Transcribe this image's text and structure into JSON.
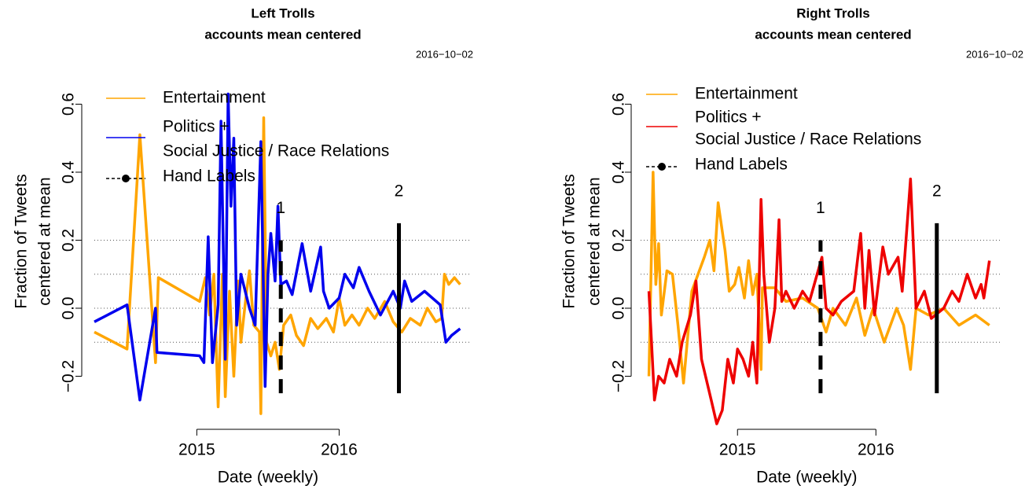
{
  "chart_data": [
    {
      "type": "line",
      "title": [
        "Left Trolls",
        "accounts mean centered"
      ],
      "annotation": "2016−10−02",
      "xlabel": "Date (weekly)",
      "ylabel": [
        "Fraction of Tweets",
        "centered at mean"
      ],
      "xlim": [
        2014.28,
        2016.87
      ],
      "ylim": [
        -0.33,
        0.65
      ],
      "xticks": [
        2015,
        2016
      ],
      "yticks": [
        {
          "value": -0.2,
          "label": "−0.2"
        },
        {
          "value": 0,
          "label": "0.0"
        },
        0.2,
        0.4,
        0.6
      ],
      "hlines": [
        0.2,
        0.1,
        0,
        -0.1
      ],
      "series": [
        {
          "name": [
            "Entertainment"
          ],
          "color": "#ffa500",
          "x": [
            2014.28,
            2014.51,
            2014.6,
            2014.71,
            2014.73,
            2015.02,
            2015.06,
            2015.09,
            2015.12,
            2015.15,
            2015.18,
            2015.2,
            2015.23,
            2015.26,
            2015.29,
            2015.31,
            2015.35,
            2015.37,
            2015.4,
            2015.44,
            2015.45,
            2015.47,
            2015.49,
            2015.52,
            2015.55,
            2015.58,
            2015.61,
            2015.66,
            2015.7,
            2015.75,
            2015.8,
            2015.85,
            2015.91,
            2015.96,
            2016.0,
            2016.04,
            2016.09,
            2016.14,
            2016.2,
            2016.25,
            2016.32,
            2016.38,
            2016.44,
            2016.5,
            2016.57,
            2016.62,
            2016.68,
            2016.72,
            2016.74,
            2016.77,
            2016.81,
            2016.85
          ],
          "values": [
            -0.07,
            -0.12,
            0.51,
            -0.16,
            0.09,
            0.02,
            0.09,
            -0.02,
            0.1,
            -0.29,
            0.1,
            -0.26,
            0.05,
            -0.2,
            0.08,
            -0.1,
            0.05,
            0.11,
            -0.05,
            -0.07,
            -0.31,
            0.56,
            -0.1,
            -0.14,
            -0.1,
            -0.18,
            -0.05,
            -0.02,
            -0.08,
            -0.11,
            -0.03,
            -0.06,
            -0.03,
            -0.07,
            0.03,
            -0.05,
            -0.02,
            -0.05,
            0.0,
            -0.03,
            0.02,
            -0.04,
            -0.07,
            -0.03,
            -0.05,
            0.0,
            -0.04,
            -0.03,
            0.1,
            0.07,
            0.09,
            0.07
          ]
        },
        {
          "name": [
            "Politics +",
            "Social Justice / Race Relations"
          ],
          "color": "#0000ee",
          "x": [
            2014.28,
            2014.51,
            2014.6,
            2014.71,
            2014.72,
            2015.02,
            2015.05,
            2015.08,
            2015.11,
            2015.15,
            2015.17,
            2015.2,
            2015.22,
            2015.24,
            2015.26,
            2015.28,
            2015.31,
            2015.37,
            2015.41,
            2015.45,
            2015.48,
            2015.5,
            2015.52,
            2015.55,
            2015.57,
            2015.59,
            2015.63,
            2015.67,
            2015.74,
            2015.8,
            2015.87,
            2015.89,
            2015.93,
            2016.0,
            2016.04,
            2016.1,
            2016.14,
            2016.21,
            2016.29,
            2016.38,
            2016.43,
            2016.46,
            2016.51,
            2016.6,
            2016.71,
            2016.75,
            2016.79,
            2016.85
          ],
          "values": [
            -0.04,
            0.01,
            -0.27,
            0.0,
            -0.13,
            -0.14,
            -0.16,
            0.21,
            -0.16,
            0.01,
            0.55,
            -0.15,
            0.63,
            0.3,
            0.5,
            -0.05,
            0.1,
            0.0,
            -0.05,
            0.49,
            -0.23,
            0.1,
            0.22,
            0.08,
            0.3,
            0.07,
            0.08,
            0.04,
            0.19,
            0.05,
            0.18,
            0.05,
            0.0,
            0.03,
            0.1,
            0.06,
            0.12,
            0.05,
            -0.02,
            0.05,
            0.0,
            0.08,
            0.02,
            0.05,
            0.01,
            -0.1,
            -0.08,
            -0.06
          ]
        }
      ],
      "hand_labels": {
        "name": "Hand Labels",
        "color": "#000000",
        "lines": [
          {
            "label": "1",
            "x": 2015.59,
            "y": [
              -0.25,
              0.2
            ],
            "style": "dashed"
          },
          {
            "label": "2",
            "x": 2016.42,
            "y": [
              -0.25,
              0.25
            ],
            "style": "solid"
          }
        ]
      }
    },
    {
      "type": "line",
      "title": [
        "Right Trolls",
        "accounts mean centered"
      ],
      "annotation": "2016−10−02",
      "xlabel": "Date (weekly)",
      "ylabel": [
        "Fraction of Tweets",
        "centered at mean"
      ],
      "xlim": [
        2014.3,
        2016.85
      ],
      "ylim": [
        -0.35,
        0.65
      ],
      "xticks": [
        2015,
        2016
      ],
      "yticks": [
        {
          "value": -0.2,
          "label": "−0.2"
        },
        {
          "value": 0,
          "label": "0.0"
        },
        0.2,
        0.4,
        0.6
      ],
      "hlines": [
        0.2,
        0.1,
        0,
        -0.1
      ],
      "series": [
        {
          "name": [
            "Entertainment"
          ],
          "color": "#ffa500",
          "x": [
            2014.36,
            2014.39,
            2014.41,
            2014.43,
            2014.45,
            2014.49,
            2014.53,
            2014.57,
            2014.61,
            2014.67,
            2014.76,
            2014.8,
            2014.83,
            2014.86,
            2014.91,
            2014.94,
            2014.98,
            2015.01,
            2015.05,
            2015.08,
            2015.11,
            2015.14,
            2015.17,
            2015.18,
            2015.27,
            2015.35,
            2015.47,
            2015.58,
            2015.64,
            2015.69,
            2015.78,
            2015.86,
            2015.92,
            2015.98,
            2016.06,
            2016.15,
            2016.2,
            2016.25,
            2016.29,
            2016.38,
            2016.49,
            2016.6,
            2016.72,
            2016.82
          ],
          "values": [
            -0.2,
            0.4,
            0.07,
            0.19,
            -0.02,
            0.11,
            0.1,
            -0.05,
            -0.22,
            0.05,
            0.15,
            0.2,
            0.11,
            0.31,
            0.17,
            0.05,
            0.07,
            0.12,
            0.03,
            0.14,
            0.04,
            0.1,
            -0.18,
            0.06,
            0.06,
            0.02,
            0.03,
            0.0,
            -0.07,
            0.0,
            -0.05,
            0.03,
            -0.08,
            0.0,
            -0.1,
            0.0,
            -0.05,
            -0.18,
            0.0,
            -0.02,
            0.0,
            -0.05,
            -0.02,
            -0.05
          ]
        },
        {
          "name": [
            "Politics +",
            "Social Justice / Race Relations"
          ],
          "color": "#ee0000",
          "x": [
            2014.36,
            2014.4,
            2014.43,
            2014.47,
            2014.51,
            2014.56,
            2014.6,
            2014.66,
            2014.7,
            2014.74,
            2014.81,
            2014.85,
            2014.89,
            2014.93,
            2014.97,
            2015.0,
            2015.04,
            2015.08,
            2015.11,
            2015.14,
            2015.17,
            2015.19,
            2015.23,
            2015.27,
            2015.3,
            2015.32,
            2015.35,
            2015.41,
            2015.47,
            2015.52,
            2015.61,
            2015.64,
            2015.69,
            2015.75,
            2015.84,
            2015.89,
            2015.92,
            2015.95,
            2015.99,
            2016.05,
            2016.09,
            2016.16,
            2016.19,
            2016.25,
            2016.29,
            2016.35,
            2016.4,
            2016.49,
            2016.55,
            2016.6,
            2016.66,
            2016.72,
            2016.76,
            2016.78,
            2016.82
          ],
          "values": [
            0.05,
            -0.27,
            -0.2,
            -0.22,
            -0.15,
            -0.2,
            -0.1,
            -0.02,
            0.08,
            -0.15,
            -0.27,
            -0.34,
            -0.3,
            -0.15,
            -0.22,
            -0.12,
            -0.15,
            -0.2,
            -0.1,
            -0.22,
            0.32,
            0.1,
            -0.1,
            0.0,
            0.26,
            0.02,
            0.05,
            0.0,
            0.05,
            0.02,
            0.15,
            0.0,
            -0.02,
            0.02,
            0.05,
            0.22,
            0.0,
            0.17,
            -0.02,
            0.18,
            0.1,
            0.15,
            0.05,
            0.38,
            0.0,
            0.05,
            -0.03,
            0.0,
            0.05,
            0.02,
            0.1,
            0.03,
            0.07,
            0.03,
            0.14
          ]
        }
      ],
      "hand_labels": {
        "name": "Hand Labels",
        "color": "#000000",
        "lines": [
          {
            "label": "1",
            "x": 2015.6,
            "y": [
              -0.25,
              0.2
            ],
            "style": "dashed"
          },
          {
            "label": "2",
            "x": 2016.44,
            "y": [
              -0.25,
              0.25
            ],
            "style": "solid"
          }
        ]
      }
    }
  ]
}
